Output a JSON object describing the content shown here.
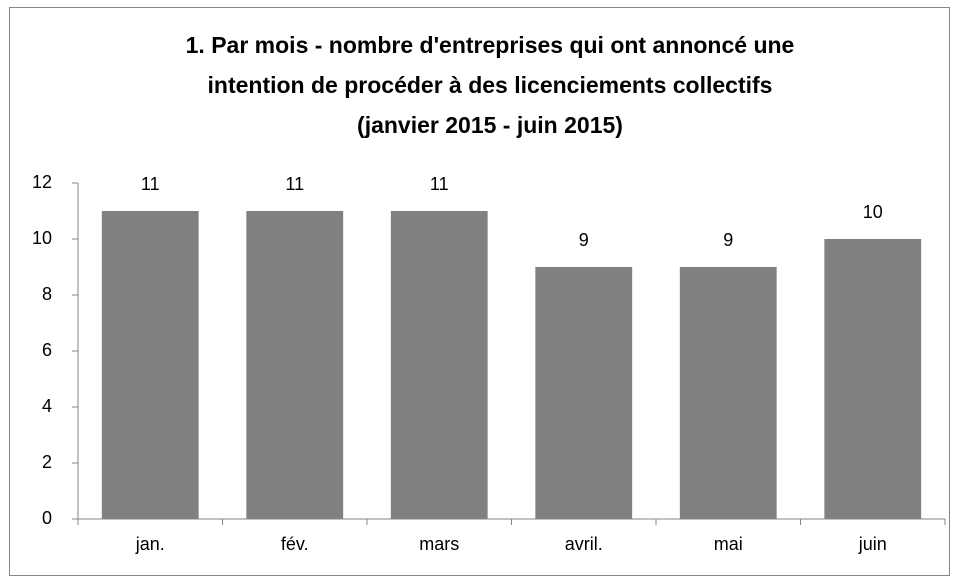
{
  "chart_data": {
    "type": "bar",
    "title": [
      "1. Par mois - nombre d'entreprises qui ont annoncé une",
      "intention de procéder à des licenciements collectifs"
    ],
    "subtitle": "(janvier 2015 - juin 2015)",
    "categories": [
      "jan.",
      "fév.",
      "mars",
      "avril.",
      "mai",
      "juin"
    ],
    "values": [
      11,
      11,
      11,
      9,
      9,
      10
    ],
    "color": "#808080",
    "ylim": [
      0,
      12
    ],
    "yticks": [
      0,
      2,
      4,
      6,
      8,
      10,
      12
    ],
    "grid": false
  }
}
